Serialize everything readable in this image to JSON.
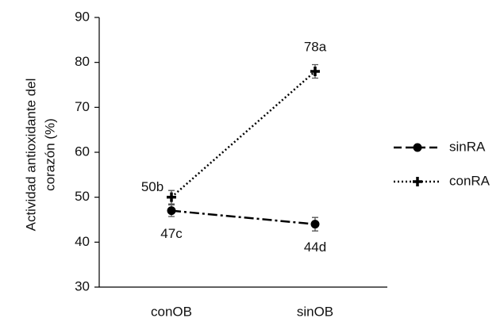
{
  "chart_data": {
    "type": "line",
    "y_label": [
      "Actividad antioxidante del",
      "corazón (%)"
    ],
    "categories": [
      "conOB",
      "sinOB"
    ],
    "series": [
      {
        "name": "sinRA",
        "color": "#000000",
        "linestyle": "dashdot",
        "marker": "circle",
        "label_position": "below",
        "values": [
          47,
          44
        ],
        "errors": [
          1.3,
          1.5
        ],
        "value_labels": [
          "47c",
          "44d"
        ]
      },
      {
        "name": "conRA",
        "color": "#000000",
        "linestyle": "dotted",
        "marker": "plus",
        "label_position": "above",
        "values": [
          50,
          78
        ],
        "errors": [
          1.5,
          1.5
        ],
        "value_labels": [
          "50b",
          "78a"
        ]
      }
    ],
    "ylim": [
      30,
      90
    ],
    "yticks": [
      30,
      40,
      50,
      60,
      70,
      80,
      90
    ],
    "legend": "right"
  }
}
